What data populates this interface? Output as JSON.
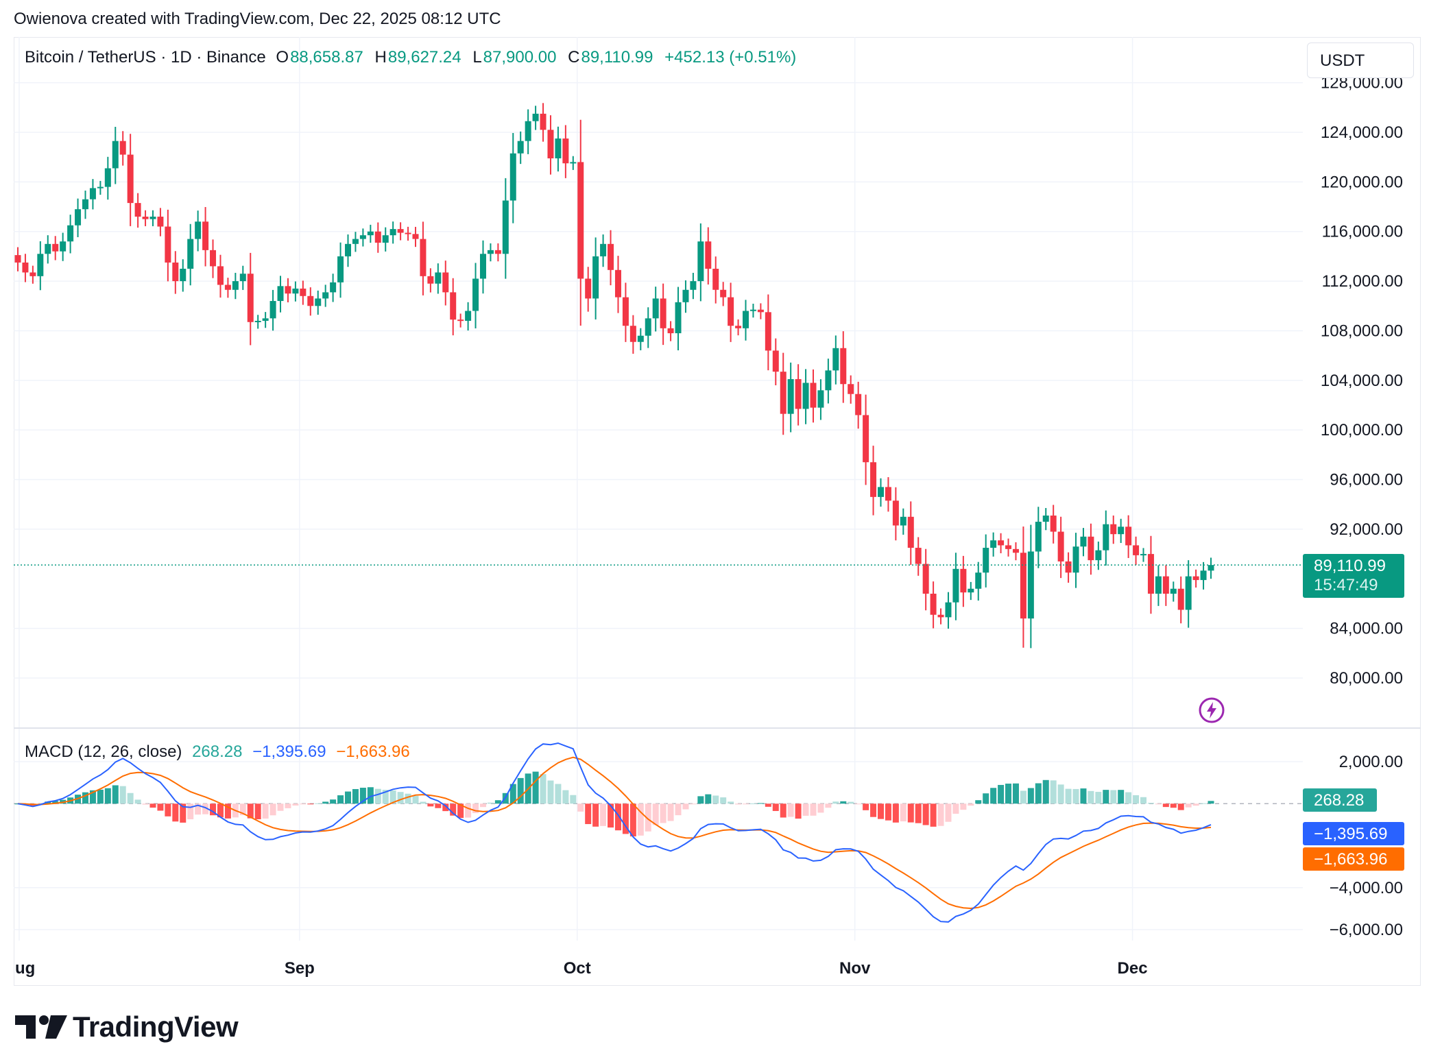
{
  "credit": "Owienova created with TradingView.com, Dec 22, 2025 08:12 UTC",
  "legend": {
    "symbol": "Bitcoin / TetherUS · 1D · Binance",
    "o_label": "O",
    "o_value": "88,658.87",
    "h_label": "H",
    "h_value": "89,627.24",
    "l_label": "L",
    "l_value": "87,900.00",
    "c_label": "C",
    "c_value": "89,110.99",
    "change": "+452.13 (+0.51%)"
  },
  "currency": "USDT",
  "price_tag": {
    "price": "89,110.99",
    "countdown": "15:47:49"
  },
  "macd_legend": {
    "name": "MACD (12, 26, close)",
    "hist": "268.28",
    "macd": "−1,395.69",
    "signal": "−1,663.96"
  },
  "macd_tags": {
    "hist": "268.28",
    "macd": "−1,395.69",
    "signal": "−1,663.96"
  },
  "brand": "TradingView",
  "colors": {
    "up": "#089981",
    "down": "#f23645",
    "macd_line": "#2962ff",
    "signal_line": "#ff6d00",
    "hist_up_light": "#b2dfdb",
    "hist_down_light": "#ffcdd2"
  },
  "chart_data": [
    {
      "type": "candlestick",
      "title": "Bitcoin / TetherUS · 1D · Binance",
      "ylim": [
        76000,
        128000
      ],
      "y_ticks": [
        "80,000.00",
        "84,000.00",
        "92,000.00",
        "96,000.00",
        "100,000.00",
        "104,000.00",
        "108,000.00",
        "112,000.00",
        "116,000.00",
        "120,000.00",
        "124,000.00",
        "128,000.00"
      ],
      "x_ticks": [
        "ug",
        "Sep",
        "Oct",
        "Nov",
        "Dec"
      ],
      "last_price": 89110.99,
      "closes": [
        113500,
        112700,
        112400,
        114200,
        115000,
        114400,
        115200,
        116500,
        117800,
        118600,
        119500,
        119600,
        121100,
        123300,
        122200,
        118300,
        117200,
        117000,
        117200,
        116400,
        113500,
        112000,
        113000,
        115400,
        116800,
        114500,
        113200,
        111700,
        111300,
        112000,
        112600,
        108700,
        108800,
        109000,
        110400,
        111600,
        111000,
        111400,
        110800,
        110000,
        110600,
        111100,
        111900,
        114000,
        115000,
        115400,
        115700,
        116000,
        115100,
        115700,
        116200,
        115900,
        115800,
        115400,
        112400,
        111800,
        112700,
        111100,
        108900,
        108800,
        109600,
        112200,
        114200,
        114500,
        114200,
        118500,
        122300,
        123300,
        124900,
        125500,
        124200,
        121900,
        123500,
        121500,
        121600,
        112200,
        110600,
        114000,
        115000,
        112900,
        110700,
        108400,
        107100,
        107600,
        109000,
        110600,
        108200,
        107800,
        110300,
        111300,
        112000,
        115200,
        113000,
        111300,
        110700,
        108400,
        108200,
        109600,
        109700,
        109500,
        106400,
        104700,
        101300,
        104100,
        101700,
        103800,
        101800,
        103200,
        104800,
        106600,
        103700,
        102900,
        101200,
        97400,
        94600,
        95400,
        94300,
        92300,
        93000,
        90500,
        89200,
        86800,
        85100,
        84900,
        86100,
        88800,
        86900,
        87200,
        88500,
        90500,
        91100,
        90700,
        90400,
        90100,
        84800,
        90200,
        92600,
        93100,
        91800,
        89400,
        88500,
        90600,
        91400,
        89500,
        90300,
        92400,
        91600,
        92200,
        90700,
        89900,
        90000,
        86800,
        88200,
        86800,
        87200,
        85500,
        88200,
        87900,
        88660,
        89111
      ]
    },
    {
      "type": "macd",
      "title": "MACD (12, 26, close)",
      "ylim": [
        -6800,
        2800
      ],
      "y_ticks": [
        "2,000.00",
        "−4,000.00",
        "−6,000.00"
      ],
      "histogram_last": 268.28,
      "macd_last": -1395.69,
      "signal_last": -1663.96
    }
  ]
}
